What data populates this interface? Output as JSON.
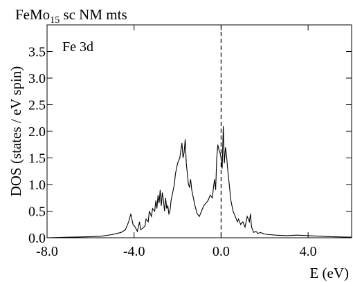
{
  "chart_data": {
    "type": "line",
    "title": {
      "prefix": "FeMo",
      "subscript": "15",
      "suffix": " sc NM mts"
    },
    "xlabel": "E (eV)",
    "ylabel": "DOS (states / eV spin)",
    "annotation": "Fe 3d",
    "xlim": [
      -8.0,
      6.0
    ],
    "ylim": [
      0.0,
      4.0
    ],
    "x_ticks": [
      {
        "value": -8.0,
        "label": "-8.0"
      },
      {
        "value": -4.0,
        "label": "-4.0"
      },
      {
        "value": 0.0,
        "label": "0.0"
      },
      {
        "value": 4.0,
        "label": "4.0"
      }
    ],
    "y_ticks": [
      {
        "value": 0.0,
        "label": "0.0"
      },
      {
        "value": 0.5,
        "label": "0.5"
      },
      {
        "value": 1.0,
        "label": "1.0"
      },
      {
        "value": 1.5,
        "label": "1.5"
      },
      {
        "value": 2.0,
        "label": "2.0"
      },
      {
        "value": 2.5,
        "label": "2.5"
      },
      {
        "value": 3.0,
        "label": "3.0"
      },
      {
        "value": 3.5,
        "label": "3.5"
      }
    ],
    "fermi_level": 0.0,
    "grid": false,
    "series": [
      {
        "x": [
          -8.0,
          -7.0,
          -6.0,
          -5.5,
          -5.0,
          -4.6,
          -4.4,
          -4.25,
          -4.15,
          -4.05,
          -3.95,
          -3.85,
          -3.75,
          -3.7,
          -3.6,
          -3.5,
          -3.45,
          -3.35,
          -3.3,
          -3.2,
          -3.15,
          -3.05,
          -3.0,
          -2.95,
          -2.9,
          -2.85,
          -2.8,
          -2.75,
          -2.7,
          -2.65,
          -2.6,
          -2.55,
          -2.5,
          -2.45,
          -2.4,
          -2.35,
          -2.3,
          -2.25,
          -2.2,
          -2.15,
          -2.1,
          -2.05,
          -2.0,
          -1.9,
          -1.8,
          -1.75,
          -1.7,
          -1.65,
          -1.6,
          -1.55,
          -1.5,
          -1.45,
          -1.4,
          -1.35,
          -1.3,
          -1.25,
          -1.2,
          -1.1,
          -1.0,
          -0.9,
          -0.8,
          -0.7,
          -0.6,
          -0.5,
          -0.4,
          -0.35,
          -0.3,
          -0.25,
          -0.2,
          -0.15,
          -0.1,
          -0.05,
          0.0,
          0.05,
          0.1,
          0.15,
          0.2,
          0.25,
          0.3,
          0.35,
          0.4,
          0.45,
          0.5,
          0.55,
          0.6,
          0.65,
          0.7,
          0.75,
          0.8,
          0.9,
          1.0,
          1.1,
          1.2,
          1.3,
          1.35,
          1.4,
          1.45,
          1.5,
          1.6,
          1.7,
          1.8,
          2.0,
          2.2,
          2.5,
          3.0,
          3.5,
          4.0,
          4.5,
          5.0,
          6.0
        ],
        "y": [
          0.0,
          0.01,
          0.02,
          0.03,
          0.06,
          0.1,
          0.15,
          0.3,
          0.45,
          0.25,
          0.2,
          0.12,
          0.3,
          0.15,
          0.18,
          0.22,
          0.35,
          0.3,
          0.5,
          0.4,
          0.55,
          0.5,
          0.7,
          0.55,
          0.8,
          0.65,
          0.9,
          0.6,
          0.85,
          0.7,
          0.5,
          0.75,
          0.55,
          0.6,
          0.45,
          0.5,
          0.7,
          0.8,
          0.9,
          1.0,
          1.2,
          1.3,
          1.4,
          1.5,
          1.78,
          1.5,
          1.6,
          1.85,
          1.4,
          1.2,
          1.0,
          0.95,
          1.1,
          0.9,
          0.8,
          0.7,
          0.6,
          0.45,
          0.4,
          0.5,
          0.6,
          0.65,
          0.7,
          0.8,
          0.75,
          0.95,
          1.1,
          0.9,
          1.5,
          1.75,
          1.65,
          1.6,
          1.5,
          1.3,
          2.1,
          1.4,
          1.7,
          1.55,
          1.3,
          1.1,
          0.9,
          0.7,
          0.6,
          0.5,
          0.45,
          0.4,
          0.35,
          0.3,
          0.35,
          0.25,
          0.3,
          0.2,
          0.4,
          0.3,
          0.45,
          0.2,
          0.15,
          0.1,
          0.12,
          0.08,
          0.1,
          0.07,
          0.06,
          0.05,
          0.04,
          0.05,
          0.04,
          0.03,
          0.02,
          0.01
        ]
      }
    ]
  }
}
